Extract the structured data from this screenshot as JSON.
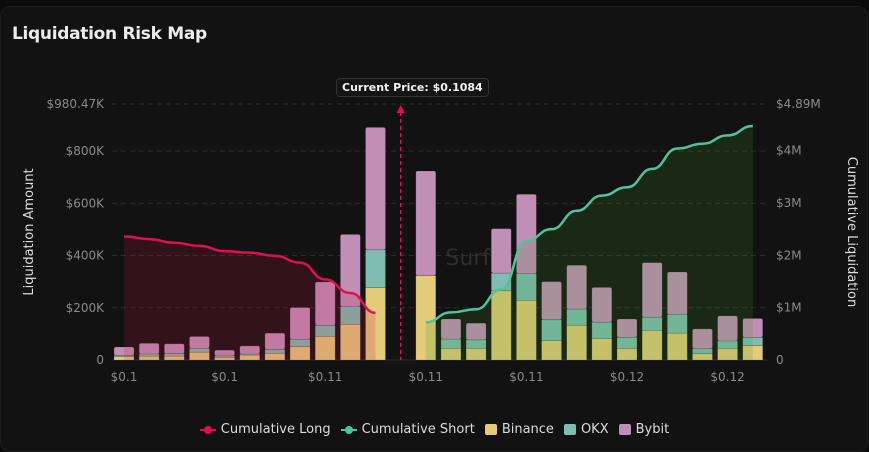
{
  "title": "Liquidation Risk Map",
  "current_price_label": "Current Price: $0.1084",
  "watermark": "Surf",
  "colors": {
    "long": "#e0104f",
    "short": "#4fc49a",
    "binance": "#e3cb7a",
    "okx": "#7fbdb0",
    "bybit": "#c18fb6"
  },
  "legend": [
    "Cumulative Long",
    "Cumulative Short",
    "Binance",
    "OKX",
    "Bybit"
  ],
  "chart_data": {
    "type": "bar",
    "title": "Liquidation Risk Map",
    "ylabel": "Liquidation Amount",
    "y2label": "Cumulative Liquidation",
    "ylim": [
      0,
      980470
    ],
    "y2lim": [
      0,
      4890000
    ],
    "yticks": [
      "0",
      "$200K",
      "$400K",
      "$600K",
      "$800K",
      "$980.47K"
    ],
    "ytick_values": [
      0,
      200000,
      400000,
      600000,
      800000,
      980470
    ],
    "y2ticks": [
      "0",
      "$1M",
      "$2M",
      "$3M",
      "$4M",
      "$4.89M"
    ],
    "y2tick_values": [
      0,
      1000000,
      2000000,
      3000000,
      4000000,
      4890000
    ],
    "xtick_labels": [
      "$0.1",
      "$0.1",
      "$0.11",
      "$0.11",
      "$0.11",
      "$0.12",
      "$0.12"
    ],
    "xtick_every": 4,
    "category_count": 26,
    "current_price_index": 11,
    "series": [
      {
        "name": "Binance",
        "values": [
          13000,
          15000,
          15000,
          30000,
          10000,
          19000,
          26000,
          51000,
          91000,
          137000,
          277000,
          0,
          323000,
          44000,
          44000,
          265000,
          228000,
          74000,
          133000,
          82000,
          44000,
          113000,
          103000,
          24000,
          44000,
          55000
        ]
      },
      {
        "name": "OKX",
        "values": [
          5000,
          8000,
          9000,
          15000,
          6000,
          4000,
          15000,
          28000,
          42000,
          68000,
          145000,
          0,
          0,
          36000,
          33000,
          68000,
          103000,
          80000,
          62000,
          63000,
          43000,
          51000,
          71000,
          19000,
          29000,
          32000
        ]
      },
      {
        "name": "Bybit",
        "values": [
          32000,
          41000,
          38000,
          45000,
          22000,
          31000,
          62000,
          122000,
          166000,
          276000,
          469000,
          0,
          401000,
          77000,
          64000,
          170000,
          304000,
          146000,
          168000,
          133000,
          70000,
          209000,
          163000,
          76000,
          96000,
          72000
        ]
      },
      {
        "name": "Cumulative Long",
        "axis": "right",
        "values": [
          2360000,
          2310000,
          2240000,
          2180000,
          2080000,
          2050000,
          1990000,
          1860000,
          1540000,
          1280000,
          900000,
          null,
          null,
          null,
          null,
          null,
          null,
          null,
          null,
          null,
          null,
          null,
          null,
          null,
          null,
          null
        ]
      },
      {
        "name": "Cumulative Short",
        "axis": "right",
        "values": [
          null,
          null,
          null,
          null,
          null,
          null,
          null,
          null,
          null,
          null,
          null,
          null,
          720000,
          910000,
          970000,
          1350000,
          2280000,
          2500000,
          2850000,
          3140000,
          3300000,
          3650000,
          4040000,
          4130000,
          4290000,
          4470000
        ]
      }
    ],
    "grid": true,
    "legend_position": "bottom"
  }
}
